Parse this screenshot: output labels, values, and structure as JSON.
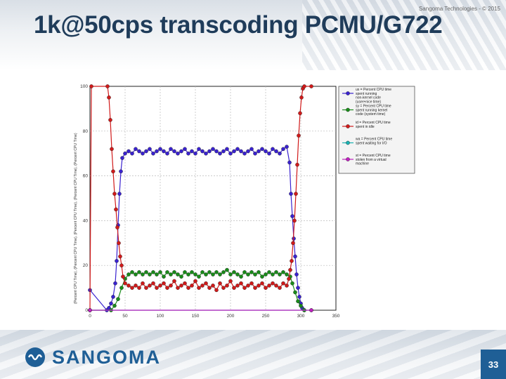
{
  "header": {
    "title": "1k@50cps transcoding PCMU/G722",
    "copyright": "Sangoma Technologies - © 2015"
  },
  "footer": {
    "logo_text": "SANGOMA",
    "page_number": "33"
  },
  "colors": {
    "title": "#1f3c5a",
    "brand": "#1f5f96",
    "us": "#3a22d0",
    "sy": "#1a8c1a",
    "id": "#d11a1a",
    "wa": "#19b3b3",
    "st": "#c020c0"
  },
  "chart_data": {
    "type": "line",
    "ylabel": "(Percent CPU Time), (Percent CPU Time), (Percent CPU Time), (Percent CPU Time), (Percent CPU Time)",
    "xlim": [
      0,
      350
    ],
    "ylim": [
      0,
      100
    ],
    "xticks": [
      0,
      50,
      100,
      150,
      200,
      250,
      300,
      350
    ],
    "yticks": [
      0,
      20,
      40,
      60,
      80,
      100
    ],
    "grid": true,
    "legend_position": "top-right",
    "series": [
      {
        "name": "us = Percent CPU time spent running non-kernel code (user+nice time)",
        "color": "#3a22d0",
        "x": [
          0,
          24,
          27,
          30,
          33,
          36,
          38,
          40,
          42,
          44,
          46,
          50,
          55,
          60,
          65,
          70,
          75,
          80,
          85,
          90,
          95,
          100,
          105,
          110,
          115,
          120,
          125,
          130,
          135,
          140,
          145,
          150,
          155,
          160,
          165,
          170,
          175,
          180,
          185,
          190,
          195,
          200,
          205,
          210,
          215,
          220,
          225,
          230,
          235,
          240,
          245,
          250,
          255,
          260,
          265,
          270,
          275,
          280,
          284,
          286,
          288,
          290,
          292,
          294,
          296,
          298,
          300,
          302,
          305
        ],
        "y": [
          9,
          0,
          1,
          3,
          6,
          12,
          22,
          38,
          52,
          62,
          68,
          70,
          71,
          70,
          72,
          71,
          70,
          71,
          72,
          70,
          71,
          72,
          71,
          70,
          72,
          71,
          70,
          71,
          72,
          70,
          71,
          70,
          72,
          71,
          70,
          71,
          72,
          71,
          70,
          71,
          72,
          70,
          71,
          72,
          71,
          70,
          71,
          72,
          70,
          71,
          72,
          71,
          70,
          72,
          71,
          70,
          72,
          73,
          66,
          52,
          42,
          32,
          24,
          16,
          10,
          6,
          3,
          1,
          0
        ]
      },
      {
        "name": "sy = Percent CPU time spent running kernel code (system time)",
        "color": "#1a8c1a",
        "x": [
          0,
          30,
          35,
          40,
          45,
          50,
          55,
          60,
          65,
          70,
          75,
          80,
          85,
          90,
          95,
          100,
          105,
          110,
          115,
          120,
          125,
          130,
          135,
          140,
          145,
          150,
          155,
          160,
          165,
          170,
          175,
          180,
          185,
          190,
          195,
          200,
          205,
          210,
          215,
          220,
          225,
          230,
          235,
          240,
          245,
          250,
          255,
          260,
          265,
          270,
          275,
          280,
          285,
          288,
          292,
          296,
          300,
          305
        ],
        "y": [
          0,
          0,
          2,
          5,
          10,
          14,
          16,
          17,
          16,
          17,
          16,
          17,
          16,
          17,
          16,
          17,
          15,
          17,
          16,
          17,
          16,
          15,
          17,
          16,
          17,
          16,
          15,
          17,
          16,
          17,
          16,
          17,
          16,
          17,
          18,
          16,
          17,
          16,
          15,
          17,
          16,
          17,
          16,
          17,
          15,
          16,
          17,
          16,
          17,
          16,
          17,
          16,
          15,
          12,
          8,
          4,
          2,
          0
        ]
      },
      {
        "name": "id = Percent CPU time spent in idle",
        "color": "#d11a1a",
        "x": [
          0,
          2,
          25,
          27,
          29,
          31,
          33,
          35,
          37,
          39,
          41,
          43,
          45,
          47,
          50,
          55,
          60,
          65,
          70,
          75,
          80,
          85,
          90,
          95,
          100,
          105,
          110,
          115,
          120,
          125,
          130,
          135,
          140,
          145,
          150,
          155,
          160,
          165,
          170,
          175,
          180,
          185,
          190,
          195,
          200,
          205,
          210,
          215,
          220,
          225,
          230,
          235,
          240,
          245,
          250,
          255,
          260,
          265,
          270,
          275,
          280,
          283,
          285,
          287,
          289,
          291,
          293,
          295,
          297,
          299,
          301,
          303,
          305,
          315
        ],
        "y": [
          0,
          100,
          100,
          95,
          85,
          72,
          62,
          52,
          45,
          37,
          30,
          24,
          20,
          15,
          12,
          11,
          10,
          11,
          10,
          12,
          10,
          11,
          12,
          10,
          11,
          12,
          10,
          11,
          13,
          10,
          11,
          12,
          10,
          11,
          13,
          10,
          11,
          12,
          10,
          11,
          9,
          12,
          10,
          11,
          13,
          10,
          11,
          12,
          10,
          11,
          12,
          10,
          11,
          12,
          10,
          11,
          12,
          11,
          10,
          12,
          11,
          14,
          18,
          22,
          30,
          40,
          52,
          65,
          78,
          88,
          95,
          99,
          100,
          100
        ]
      },
      {
        "name": "wa = Percent CPU time spent waiting for I/O",
        "color": "#19b3b3",
        "x": [
          0,
          315
        ],
        "y": [
          0,
          0
        ]
      },
      {
        "name": "st = Percent CPU time stolen from a virtual machine",
        "color": "#c020c0",
        "x": [
          0,
          315
        ],
        "y": [
          0,
          0
        ]
      }
    ]
  }
}
